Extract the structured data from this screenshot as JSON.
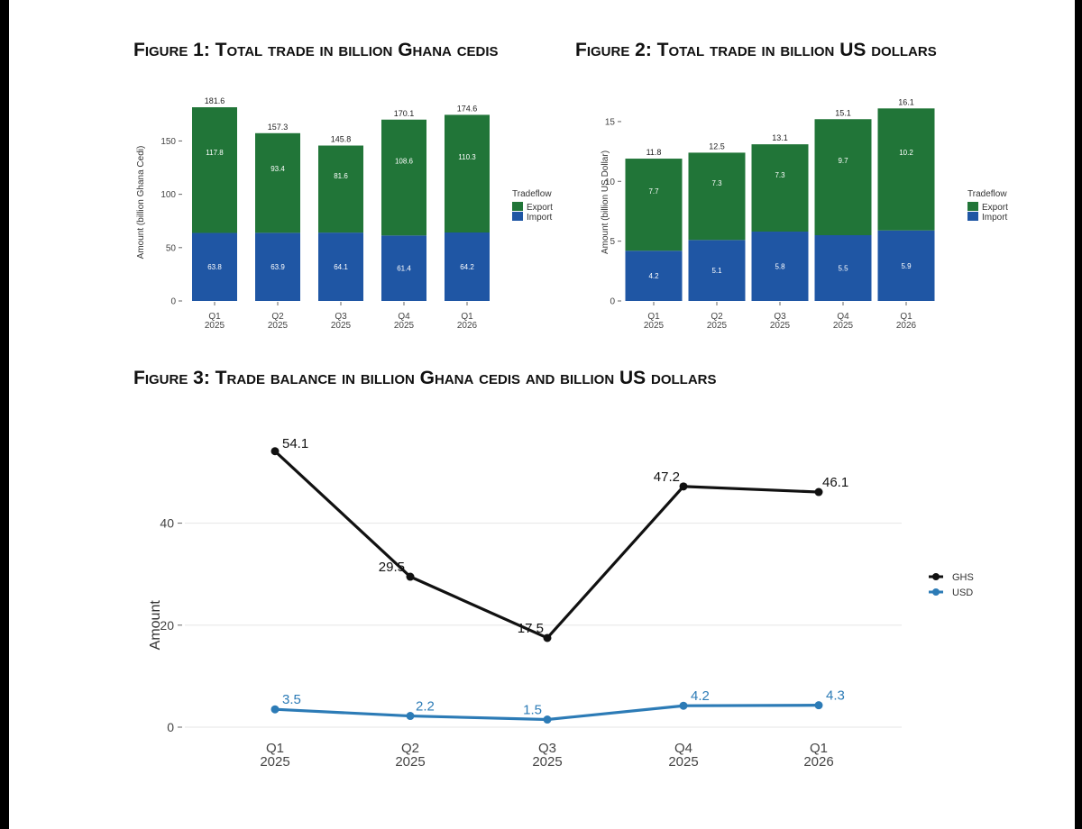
{
  "figures": {
    "fig1_title": "Figure 1: Total trade in billion Ghana cedis",
    "fig2_title": "Figure 2: Total trade in billion US dollars",
    "fig3_title": "Figure 3: Trade balance in billion Ghana cedis and billion US dollars"
  },
  "colors": {
    "export": "#217538",
    "import": "#1f56a4",
    "ghs": "#111111",
    "usd": "#2c7bb6",
    "grid": "#e6e6e6"
  },
  "chart_data": [
    {
      "type": "bar",
      "stacked": true,
      "title": "Figure 1: Total trade in billion Ghana cedis",
      "ylabel": "Amount (billion Ghana Cedi)",
      "ylim": [
        0,
        185
      ],
      "yticks": [
        0,
        50,
        100,
        150
      ],
      "categories": [
        "Q1\n2025",
        "Q2\n2025",
        "Q3\n2025",
        "Q4\n2025",
        "Q1\n2026"
      ],
      "legend_title": "Tradeflow",
      "legend_position": "right",
      "series": [
        {
          "name": "Import",
          "values": [
            63.8,
            63.9,
            64.1,
            61.4,
            64.2
          ],
          "color": "#1f56a4"
        },
        {
          "name": "Export",
          "values": [
            117.8,
            93.4,
            81.6,
            108.6,
            110.3
          ],
          "color": "#217538"
        }
      ],
      "totals": [
        181.6,
        157.3,
        145.8,
        170.1,
        174.6
      ]
    },
    {
      "type": "bar",
      "stacked": true,
      "title": "Figure 2: Total trade in billion US dollars",
      "ylabel": "Amount (billion US Dollar)",
      "ylim": [
        0,
        16.5
      ],
      "yticks": [
        0,
        5,
        10,
        15
      ],
      "categories": [
        "Q1\n2025",
        "Q2\n2025",
        "Q3\n2025",
        "Q4\n2025",
        "Q1\n2026"
      ],
      "legend_title": "Tradeflow",
      "legend_position": "right",
      "series": [
        {
          "name": "Import",
          "values": [
            4.2,
            5.1,
            5.8,
            5.5,
            5.9
          ],
          "color": "#1f56a4"
        },
        {
          "name": "Export",
          "values": [
            7.7,
            7.3,
            7.3,
            9.7,
            10.2
          ],
          "color": "#217538"
        }
      ],
      "totals": [
        11.8,
        12.5,
        13.1,
        15.1,
        16.1
      ]
    },
    {
      "type": "line",
      "title": "Figure 3: Trade balance in billion Ghana cedis and billion US dollars",
      "ylabel": "Amount",
      "ylim": [
        0,
        56
      ],
      "yticks": [
        0,
        20,
        40
      ],
      "grid": true,
      "categories": [
        "Q1\n2025",
        "Q2\n2025",
        "Q3\n2025",
        "Q4\n2025",
        "Q1\n2026"
      ],
      "legend_position": "right",
      "series": [
        {
          "name": "GHS",
          "values": [
            54.1,
            29.5,
            17.5,
            47.2,
            46.1
          ],
          "color": "#111111"
        },
        {
          "name": "USD",
          "values": [
            3.5,
            2.2,
            1.5,
            4.2,
            4.3
          ],
          "color": "#2c7bb6"
        }
      ]
    }
  ]
}
